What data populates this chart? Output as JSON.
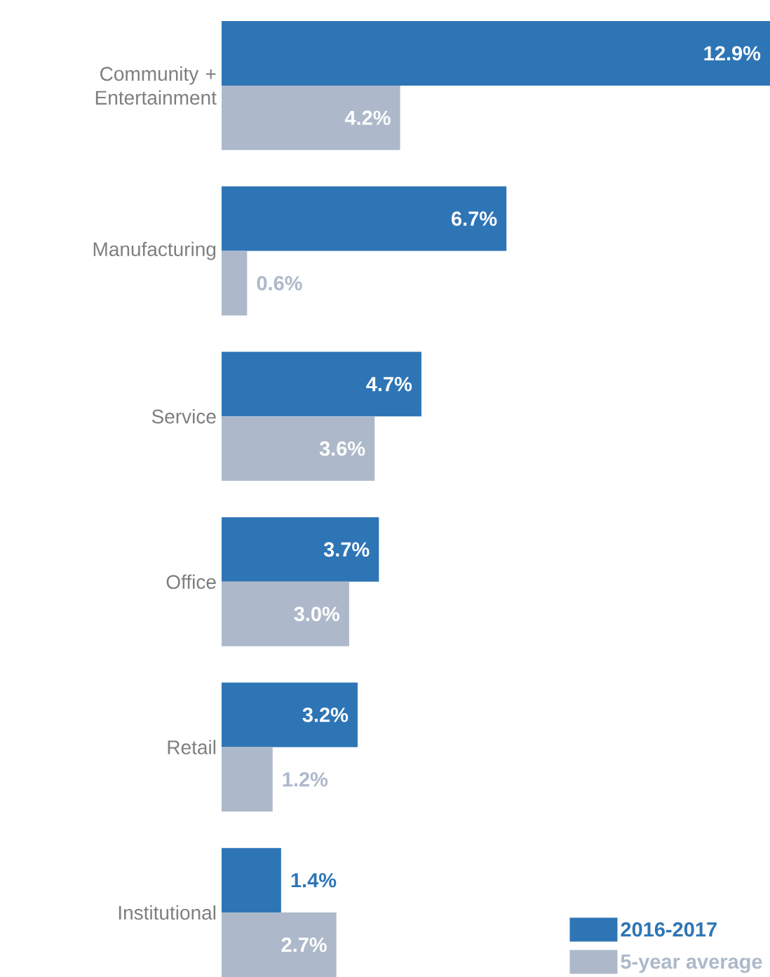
{
  "chart_data": {
    "type": "bar",
    "orientation": "horizontal",
    "categories": [
      "Community + Entertainment",
      "Manufacturing",
      "Service",
      "Office",
      "Retail",
      "Institutional"
    ],
    "series": [
      {
        "name": "2016-2017",
        "color": "#2e75b6",
        "values": [
          12.9,
          6.7,
          4.7,
          3.7,
          3.2,
          1.4
        ],
        "value_labels": [
          "12.9%",
          "6.7%",
          "4.7%",
          "3.7%",
          "3.2%",
          "1.4%"
        ]
      },
      {
        "name": "5-year average",
        "color": "#adb9ca",
        "values": [
          4.2,
          0.6,
          3.6,
          3.0,
          1.2,
          2.7
        ],
        "value_labels": [
          "4.2%",
          "0.6%",
          "3.6%",
          "3.0%",
          "1.2%",
          "2.7%"
        ]
      }
    ],
    "legend": "bottom right"
  }
}
